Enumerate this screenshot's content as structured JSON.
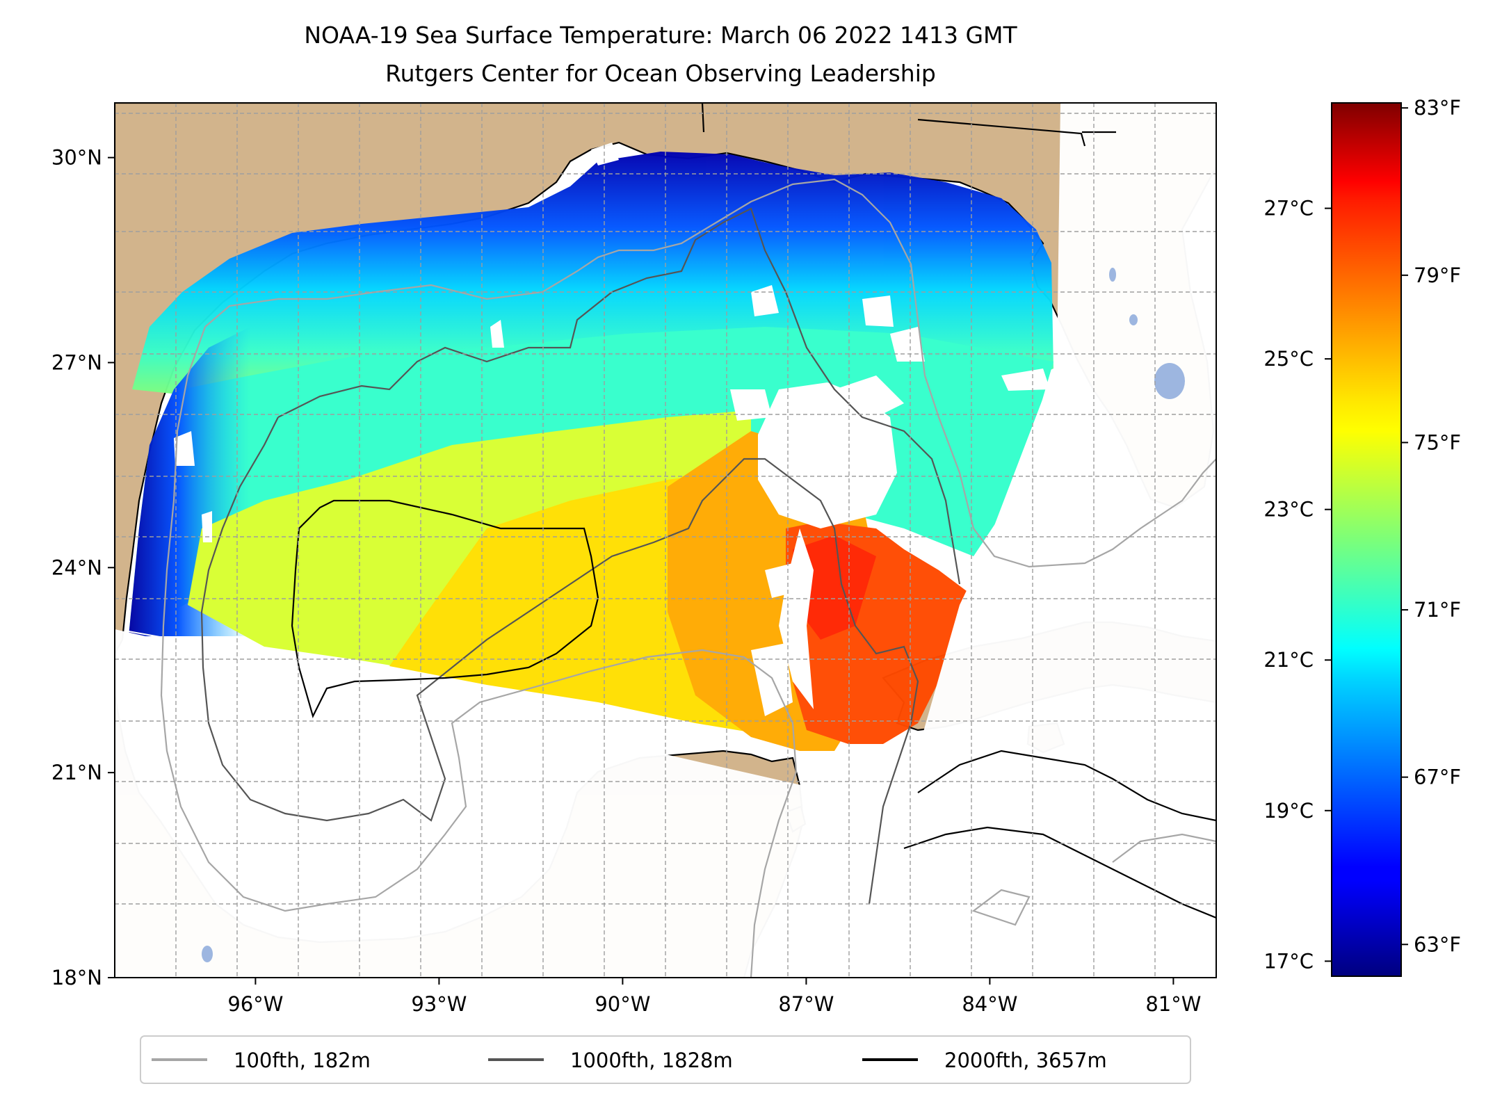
{
  "title": {
    "line1": "NOAA-19 Sea Surface Temperature: March 06 2022 1413 GMT",
    "line2": "Rutgers Center for Ocean Observing Leadership"
  },
  "map": {
    "lon_range": [
      -98.3,
      -80.3
    ],
    "lat_range": [
      18.0,
      30.8
    ],
    "lon_ticks": [
      {
        "value": -96,
        "label": "96°W"
      },
      {
        "value": -93,
        "label": "93°W"
      },
      {
        "value": -90,
        "label": "90°W"
      },
      {
        "value": -87,
        "label": "87°W"
      },
      {
        "value": -84,
        "label": "84°W"
      },
      {
        "value": -81,
        "label": "81°W"
      }
    ],
    "lat_ticks": [
      {
        "value": 18,
        "label": "18°N"
      },
      {
        "value": 21,
        "label": "21°N"
      },
      {
        "value": 24,
        "label": "24°N"
      },
      {
        "value": 27,
        "label": "27°N"
      },
      {
        "value": 30,
        "label": "30°N"
      }
    ],
    "gridlines": "dashed",
    "land_color": "#d2b48c",
    "cloud_color": "#ffffff"
  },
  "colorbar": {
    "colormap": "jet",
    "range_c": [
      16.8,
      28.4
    ],
    "celsius_ticks": [
      {
        "value": 17,
        "label": "17°C"
      },
      {
        "value": 19,
        "label": "19°C"
      },
      {
        "value": 21,
        "label": "21°C"
      },
      {
        "value": 23,
        "label": "23°C"
      },
      {
        "value": 25,
        "label": "25°C"
      },
      {
        "value": 27,
        "label": "27°C"
      }
    ],
    "fahrenheit_ticks": [
      {
        "value": 63,
        "label": "63°F"
      },
      {
        "value": 67,
        "label": "67°F"
      },
      {
        "value": 71,
        "label": "71°F"
      },
      {
        "value": 75,
        "label": "75°F"
      },
      {
        "value": 79,
        "label": "79°F"
      },
      {
        "value": 83,
        "label": "83°F"
      }
    ]
  },
  "legend": {
    "placement": "bottom-center",
    "items": [
      {
        "label": "100fth, 182m",
        "color": "#a6a6a6"
      },
      {
        "label": "1000fth, 1828m",
        "color": "#555555"
      },
      {
        "label": "2000fth, 3657m",
        "color": "#000000"
      }
    ]
  }
}
